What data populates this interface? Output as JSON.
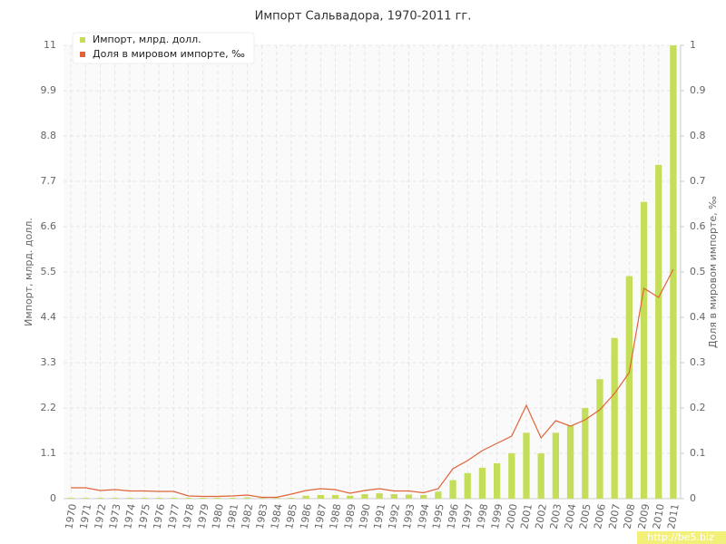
{
  "chart_data": {
    "type": "bar_line",
    "title": "Импорт Сальвадора, 1970-2011 гг.",
    "y_label": "Импорт, млрд. долл.",
    "y2_label": "Доля в мировом импорте, ‰",
    "watermark": "http://be5.biz",
    "categories": [
      "1970",
      "1971",
      "1972",
      "1973",
      "1974",
      "1975",
      "1976",
      "1977",
      "1978",
      "1979",
      "1980",
      "1981",
      "1982",
      "1983",
      "1984",
      "1985",
      "1986",
      "1987",
      "1988",
      "1989",
      "1990",
      "1991",
      "1992",
      "1993",
      "1994",
      "1995",
      "1996",
      "1997",
      "1998",
      "1999",
      "2000",
      "2001",
      "2002",
      "2003",
      "2004",
      "2005",
      "2006",
      "2007",
      "2008",
      "2009",
      "2010",
      "2011"
    ],
    "series": [
      {
        "name": "Импорт, млрд. долл.",
        "type": "bar",
        "color": "#c5de5a",
        "values": [
          0.02,
          0.02,
          0.02,
          0.02,
          0.02,
          0.02,
          0.02,
          0.02,
          0.02,
          0.02,
          0.02,
          0.02,
          0.03,
          0.02,
          0.02,
          0.02,
          0.07,
          0.09,
          0.09,
          0.07,
          0.11,
          0.13,
          0.11,
          0.1,
          0.09,
          0.17,
          0.45,
          0.62,
          0.75,
          0.86,
          1.1,
          1.6,
          1.1,
          1.6,
          1.78,
          2.2,
          2.9,
          3.9,
          5.4,
          7.2,
          8.1,
          11
        ]
      },
      {
        "name": "Доля в мировом импорте, ‰",
        "type": "line",
        "axis": "y2",
        "color": "#e0643a",
        "values": [
          0.024,
          0.024,
          0.018,
          0.02,
          0.017,
          0.017,
          0.016,
          0.016,
          0.006,
          0.005,
          0.005,
          0.006,
          0.008,
          0.003,
          0.003,
          0.01,
          0.018,
          0.022,
          0.02,
          0.012,
          0.018,
          0.022,
          0.017,
          0.017,
          0.013,
          0.022,
          0.066,
          0.084,
          0.106,
          0.122,
          0.138,
          0.206,
          0.134,
          0.172,
          0.16,
          0.174,
          0.196,
          0.232,
          0.278,
          0.464,
          0.444,
          0.506
        ]
      }
    ],
    "ylim": [
      0,
      11
    ],
    "yticks": [
      0,
      1.1,
      2.2,
      3.3,
      4.4,
      5.5,
      6.6,
      7.7,
      8.8,
      9.9,
      11
    ],
    "y2lim": [
      0,
      1
    ],
    "y2ticks": [
      0,
      0.1,
      0.2,
      0.3,
      0.4,
      0.5,
      0.6,
      0.7,
      0.8,
      0.9,
      1
    ],
    "grid": true,
    "legend": "top-left"
  }
}
